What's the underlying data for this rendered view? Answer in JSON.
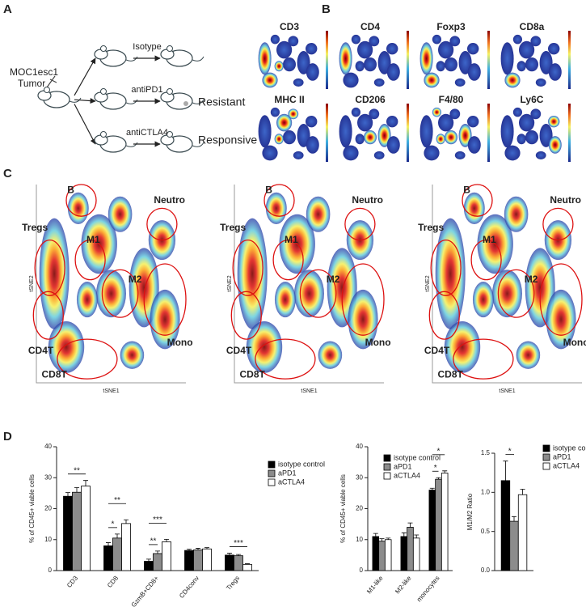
{
  "panel_labels": [
    "A",
    "B",
    "C",
    "D"
  ],
  "panel_a": {
    "tumor": [
      "MOC1esc1",
      "Tumor"
    ],
    "treatments": [
      "Isotype",
      "antiPD1",
      "antiCTLA4"
    ],
    "outcomes": [
      "Resistant",
      "Responsive"
    ]
  },
  "panel_b": {
    "markers": [
      "CD3",
      "CD4",
      "Foxp3",
      "CD8a",
      "MHC II",
      "CD206",
      "F4/80",
      "Ly6C"
    ]
  },
  "panel_c": {
    "x_label": "tSNE1",
    "y_label": "tSNE2",
    "plots": [
      {
        "clusters": [
          "B",
          "Tregs",
          "M1",
          "M2",
          "Neutro",
          "CD4T",
          "Mono",
          "CD8T"
        ]
      },
      {
        "clusters": [
          "B",
          "Tregs",
          "M1",
          "M2",
          "Neutro",
          "CD4T",
          "Mono",
          "CD8T"
        ]
      },
      {
        "clusters": [
          "B",
          "Tregs",
          "M1",
          "M2",
          "Neutro",
          "CD4T",
          "Mono",
          "CD8T"
        ]
      }
    ]
  },
  "chart_data": [
    {
      "type": "bar",
      "y_label": "% of CD45+ viable cells",
      "categories": [
        "CD3",
        "CD8",
        "GzmB+CD8+",
        "CD4conv",
        "Tregs"
      ],
      "series": [
        {
          "name": "isotype control",
          "color": "#000000",
          "values": [
            24,
            8,
            3,
            6.5,
            5
          ],
          "errors": [
            1.2,
            1,
            0.7,
            0.4,
            0.6
          ]
        },
        {
          "name": "aPD1",
          "color": "#8c8c8c",
          "values": [
            25.3,
            10.5,
            5.5,
            6.7,
            4.8
          ],
          "errors": [
            1.5,
            1.3,
            0.8,
            0.5,
            0.4
          ]
        },
        {
          "name": "aCTLA4",
          "color": "#ffffff",
          "values": [
            27.3,
            15.2,
            9.3,
            7,
            2
          ],
          "errors": [
            1.8,
            1.2,
            0.8,
            0.4,
            0.2
          ]
        }
      ],
      "ylim": [
        0,
        40
      ],
      "yticks": [
        0,
        10,
        20,
        30,
        40
      ],
      "legend": "right",
      "annotations": [
        "**",
        "*",
        "**",
        "**",
        "***",
        "***"
      ]
    },
    {
      "type": "bar",
      "y_label": "% of CD45+ viable cells",
      "categories": [
        "M1-like",
        "M2-like",
        "monocytes"
      ],
      "series": [
        {
          "name": "isotype control",
          "color": "#000000",
          "values": [
            11,
            11,
            26
          ],
          "errors": [
            1,
            1.2,
            0.6
          ]
        },
        {
          "name": "aPD1",
          "color": "#8c8c8c",
          "values": [
            9.5,
            14,
            29.5
          ],
          "errors": [
            0.8,
            1.4,
            0.5
          ]
        },
        {
          "name": "aCTLA4",
          "color": "#ffffff",
          "values": [
            10,
            10.5,
            31.5
          ],
          "errors": [
            0.5,
            1,
            0.7
          ]
        }
      ],
      "ylim": [
        0,
        40
      ],
      "yticks": [
        0,
        10,
        20,
        30,
        40
      ],
      "legend": "upper left",
      "annotations": [
        "*",
        "*"
      ]
    },
    {
      "type": "bar",
      "y_label": "M1/M2 Ratio",
      "categories": [
        null
      ],
      "series": [
        {
          "name": "isotype control",
          "color": "#000000",
          "values": [
            1.15
          ],
          "errors": [
            0.25
          ]
        },
        {
          "name": "aPD1",
          "color": "#8c8c8c",
          "values": [
            0.63
          ],
          "errors": [
            0.06
          ]
        },
        {
          "name": "aCTLA4",
          "color": "#ffffff",
          "values": [
            0.97
          ],
          "errors": [
            0.07
          ]
        }
      ],
      "ylim": [
        0,
        1.5
      ],
      "yticks": [
        {
          "value": 0,
          "label": "0.0"
        },
        {
          "value": 0.5,
          "label": "0.5"
        },
        {
          "value": 1,
          "label": "1.0"
        },
        {
          "value": 1.5,
          "label": "1.5"
        }
      ],
      "legend": "right",
      "annotations": [
        "*"
      ]
    }
  ]
}
